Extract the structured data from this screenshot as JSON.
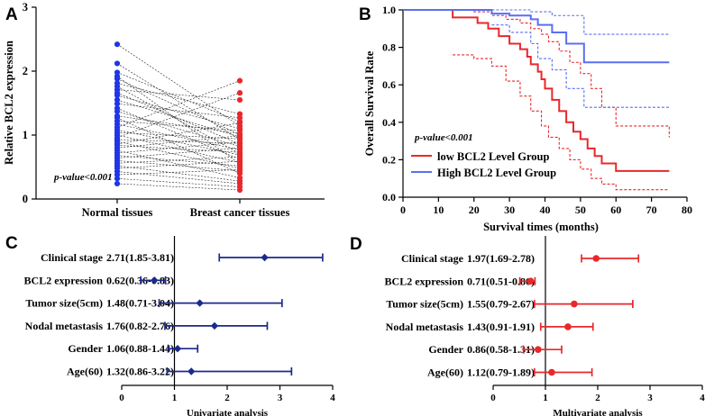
{
  "panels": [
    {
      "letter": "A",
      "chart_data": {
        "type": "scatter",
        "ylabel": "Relative BCL2 expression",
        "categories": [
          "Normal tissues",
          "Breast cancer tissues"
        ],
        "ylim": [
          0,
          3
        ],
        "yticks": [
          0,
          1,
          2,
          3
        ],
        "annotation": "p-value<0.001",
        "colors": {
          "normal": "#1f35e8",
          "cancer": "#e8282b"
        },
        "pairs": [
          [
            2.42,
            1.14
          ],
          [
            2.12,
            0.93
          ],
          [
            1.98,
            1.21
          ],
          [
            1.92,
            0.55
          ],
          [
            1.88,
            1.01
          ],
          [
            1.81,
            1.33
          ],
          [
            1.76,
            0.71
          ],
          [
            1.71,
            1.55
          ],
          [
            1.66,
            0.86
          ],
          [
            1.62,
            1.1
          ],
          [
            1.55,
            0.97
          ],
          [
            1.49,
            1.27
          ],
          [
            1.42,
            0.62
          ],
          [
            1.37,
            0.82
          ],
          [
            1.3,
            1.02
          ],
          [
            1.27,
            0.4
          ],
          [
            1.22,
            1.07
          ],
          [
            1.17,
            0.77
          ],
          [
            1.12,
            1.85
          ],
          [
            1.08,
            0.69
          ],
          [
            1.04,
            0.94
          ],
          [
            1.0,
            0.57
          ],
          [
            0.96,
            1.66
          ],
          [
            0.93,
            0.87
          ],
          [
            0.9,
            0.48
          ],
          [
            0.86,
            1.19
          ],
          [
            0.84,
            0.73
          ],
          [
            0.8,
            0.99
          ],
          [
            0.76,
            0.33
          ],
          [
            0.72,
            0.89
          ],
          [
            0.68,
            0.52
          ],
          [
            0.64,
            0.8
          ],
          [
            0.6,
            0.44
          ],
          [
            0.56,
            0.66
          ],
          [
            0.52,
            0.28
          ],
          [
            0.48,
            0.59
          ],
          [
            0.43,
            0.24
          ],
          [
            0.38,
            0.46
          ],
          [
            0.32,
            0.19
          ],
          [
            0.24,
            0.14
          ]
        ]
      }
    },
    {
      "letter": "B",
      "chart_data": {
        "type": "line",
        "xlabel": "Survival times (months)",
        "ylabel": "Overall Survival Rate",
        "xlim": [
          0,
          80
        ],
        "ylim": [
          0,
          1
        ],
        "xticks": [
          0,
          10,
          20,
          30,
          40,
          50,
          60,
          70,
          80
        ],
        "yticks": [
          0.0,
          0.2,
          0.4,
          0.6,
          0.8,
          1.0
        ],
        "annotation": "p-value<0.001",
        "series": [
          {
            "name": "low BCL2 Level Group",
            "color": "#e8282b",
            "x": [
              0,
              14,
              21,
              24,
              27,
              30,
              33,
              35,
              36,
              38,
              39,
              40,
              42,
              44,
              46,
              48,
              50,
              52,
              54,
              56,
              60,
              75
            ],
            "y": [
              1.0,
              0.96,
              0.93,
              0.9,
              0.86,
              0.82,
              0.79,
              0.75,
              0.71,
              0.67,
              0.63,
              0.58,
              0.52,
              0.46,
              0.4,
              0.35,
              0.31,
              0.26,
              0.22,
              0.18,
              0.14,
              0.14
            ],
            "upper_x": [
              14,
              20,
              25,
              29,
              33,
              36,
              39,
              41,
              44,
              47,
              50,
              53,
              56,
              60,
              75
            ],
            "upper_y": [
              1.0,
              0.99,
              0.97,
              0.95,
              0.93,
              0.9,
              0.87,
              0.83,
              0.78,
              0.72,
              0.66,
              0.58,
              0.48,
              0.38,
              0.32
            ],
            "lower_x": [
              14,
              20,
              25,
              29,
              33,
              36,
              39,
              41,
              44,
              47,
              50,
              53,
              56,
              60,
              75
            ],
            "lower_y": [
              0.76,
              0.74,
              0.7,
              0.62,
              0.54,
              0.46,
              0.38,
              0.32,
              0.26,
              0.2,
              0.15,
              0.1,
              0.07,
              0.04,
              0.04
            ]
          },
          {
            "name": "High BCL2 Level Group",
            "color": "#5a6ff2",
            "x": [
              0,
              25,
              30,
              36,
              38,
              42,
              46,
              51,
              75
            ],
            "y": [
              1.0,
              0.98,
              0.97,
              0.95,
              0.92,
              0.88,
              0.82,
              0.72,
              0.72
            ],
            "upper_x": [
              25,
              36,
              42,
              51,
              75
            ],
            "upper_y": [
              1.0,
              0.99,
              0.97,
              0.87,
              0.87
            ],
            "lower_x": [
              25,
              30,
              36,
              38,
              42,
              46,
              51,
              75
            ],
            "lower_y": [
              0.92,
              0.88,
              0.82,
              0.74,
              0.68,
              0.58,
              0.48,
              0.48
            ]
          }
        ]
      }
    },
    {
      "letter": "C",
      "chart_data": {
        "type": "scatter",
        "xlabel": "Univariate analysis",
        "xlim": [
          0,
          4
        ],
        "xticks": [
          0,
          1,
          2,
          3,
          4
        ],
        "reference": 1,
        "color": "#1b2a8c",
        "rows": [
          {
            "label": "Clinical stage",
            "value_text": "2.71(1.85-3.81)",
            "hr": 2.71,
            "lo": 1.85,
            "hi": 3.81
          },
          {
            "label": "BCL2 expression",
            "value_text": "0.62(0.36-0.83)",
            "hr": 0.62,
            "lo": 0.36,
            "hi": 0.83
          },
          {
            "label": "Tumor size(5cm)",
            "value_text": "1.48(0.71-3.04)",
            "hr": 1.48,
            "lo": 0.71,
            "hi": 3.04
          },
          {
            "label": "Nodal metastasis",
            "value_text": "1.76(0.82-2.76)",
            "hr": 1.76,
            "lo": 0.82,
            "hi": 2.76
          },
          {
            "label": "Gender",
            "value_text": "1.06(0.88-1.44)",
            "hr": 1.06,
            "lo": 0.88,
            "hi": 1.44
          },
          {
            "label": "Age(60)",
            "value_text": "1.32(0.86-3.22)",
            "hr": 1.32,
            "lo": 0.86,
            "hi": 3.22
          }
        ]
      }
    },
    {
      "letter": "D",
      "chart_data": {
        "type": "scatter",
        "xlabel": "Multivariate analysis",
        "xlim": [
          0,
          4
        ],
        "xticks": [
          0,
          1,
          2,
          3,
          4
        ],
        "reference": 1,
        "color": "#e8282b",
        "rows": [
          {
            "label": "Clinical stage",
            "value_text": "1.97(1.69-2.78)",
            "hr": 1.97,
            "lo": 1.69,
            "hi": 2.78
          },
          {
            "label": "BCL2 expression",
            "value_text": "0.71(0.51-0.80)",
            "hr": 0.71,
            "lo": 0.51,
            "hi": 0.8
          },
          {
            "label": "Tumor size(5cm)",
            "value_text": "1.55(0.79-2.67)",
            "hr": 1.55,
            "lo": 0.79,
            "hi": 2.67
          },
          {
            "label": "Nodal metastasis",
            "value_text": "1.43(0.91-1.91)",
            "hr": 1.43,
            "lo": 0.91,
            "hi": 1.91
          },
          {
            "label": "Gender",
            "value_text": "0.86(0.58-1.31)",
            "hr": 0.86,
            "lo": 0.58,
            "hi": 1.31
          },
          {
            "label": "Age(60)",
            "value_text": "1.12(0.79-1.89)",
            "hr": 1.12,
            "lo": 0.79,
            "hi": 1.89
          }
        ]
      }
    }
  ]
}
